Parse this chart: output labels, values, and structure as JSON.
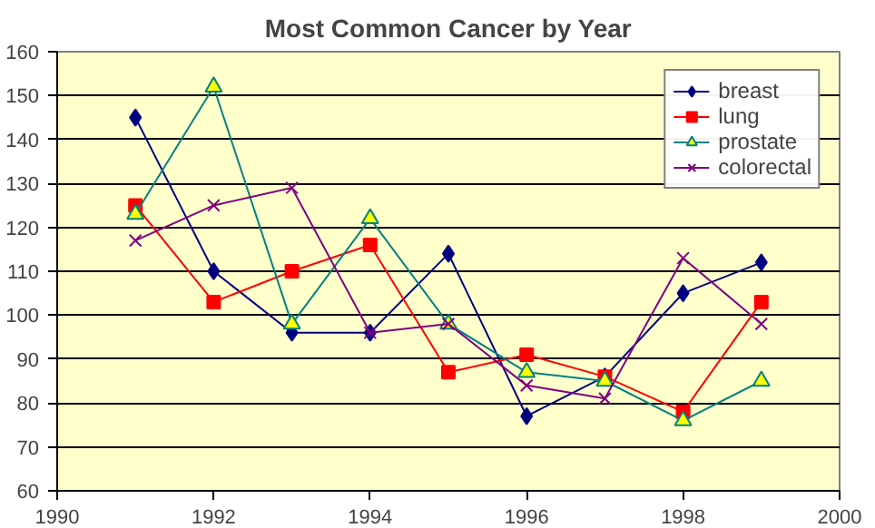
{
  "chart_data": {
    "type": "line",
    "title": "Most Common Cancer by Year",
    "x": [
      1991,
      1992,
      1993,
      1994,
      1995,
      1996,
      1997,
      1998,
      1999
    ],
    "series": [
      {
        "name": "breast",
        "color": "#000080",
        "marker": "diamond",
        "values": [
          145,
          110,
          96,
          96,
          114,
          77,
          86,
          105,
          112
        ]
      },
      {
        "name": "lung",
        "color": "#ff0000",
        "marker": "square",
        "values": [
          125,
          103,
          110,
          116,
          87,
          91,
          86,
          78,
          103
        ]
      },
      {
        "name": "prostate",
        "color": "#008080",
        "marker": "triangle",
        "values": [
          123,
          152,
          98,
          122,
          98,
          87,
          85,
          76,
          85
        ]
      },
      {
        "name": "colorectal",
        "color": "#800080",
        "marker": "cross",
        "values": [
          117,
          125,
          129,
          96,
          98,
          84,
          81,
          113,
          98
        ]
      }
    ],
    "xlim": [
      1990,
      2000
    ],
    "xticks": [
      1990,
      1992,
      1994,
      1996,
      1998,
      2000
    ],
    "ylim": [
      60,
      160
    ],
    "yticks": [
      60,
      70,
      80,
      90,
      100,
      110,
      120,
      130,
      140,
      150,
      160
    ],
    "grid": "y",
    "legend": "top right",
    "line_style": "solid"
  }
}
